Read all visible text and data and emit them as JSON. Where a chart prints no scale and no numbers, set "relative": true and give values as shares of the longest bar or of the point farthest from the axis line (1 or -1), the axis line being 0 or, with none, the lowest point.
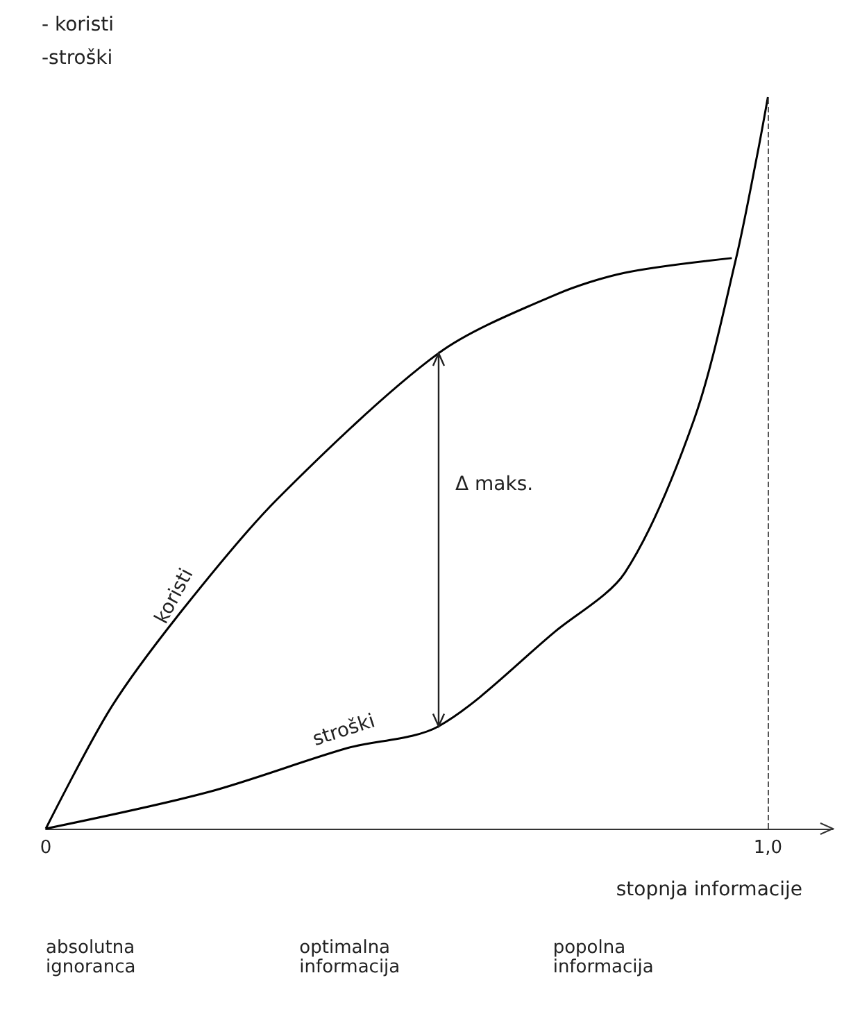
{
  "chart_data": {
    "type": "line",
    "relative": true,
    "ylabel": "- koristi\n-stroški",
    "xlabel": "stopnja informacije",
    "xlim": [
      0,
      1.09
    ],
    "xticks": [
      0,
      {
        "value": 1,
        "label": "1,0"
      }
    ],
    "series": [
      {
        "name": "koristi",
        "color": "#000000",
        "x": [
          0,
          0.09,
          0.19,
          0.32,
          0.544,
          0.706,
          0.802,
          0.95
        ],
        "values": [
          0,
          0.165,
          0.3,
          0.45,
          0.65,
          0.73,
          0.76,
          0.78
        ]
      },
      {
        "name": "stroški",
        "color": "#000000",
        "x": [
          0,
          0.225,
          0.417,
          0.544,
          0.706,
          0.802,
          0.898,
          0.956,
          0.985,
          1.0
        ],
        "values": [
          0,
          0.05,
          0.11,
          0.14,
          0.27,
          0.35,
          0.56,
          0.78,
          0.92,
          1.0
        ]
      }
    ],
    "ref_lines": [
      {
        "axis": "x",
        "value": 1,
        "line_style": "dashed"
      }
    ],
    "annotations": [
      "Δ maks.",
      "absolutna\nignoranca",
      "optimalna\ninformacija",
      "popolna\ninformacija"
    ],
    "marker": "none",
    "line_style": "solid",
    "grid": false,
    "legend": false
  }
}
